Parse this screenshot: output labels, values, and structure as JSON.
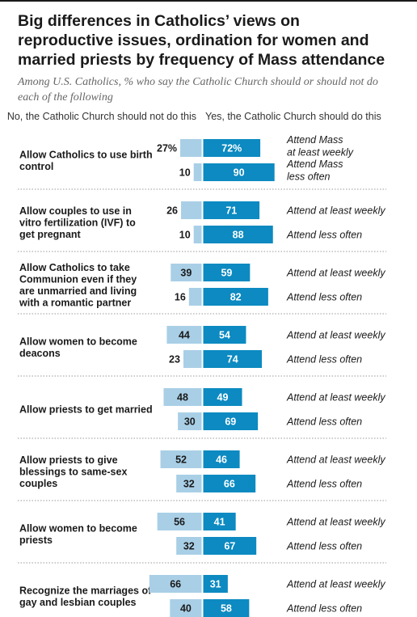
{
  "title": "Big differences in Catholics’ views on reproductive issues, ordination for women and married priests by frequency of Mass attendance",
  "subtitle": "Among U.S. Catholics, % who say the Catholic Church should or should not do each of the following",
  "colors": {
    "no": "#a9cfe6",
    "yes": "#0c8ac1",
    "no_text": "#1a1a1a",
    "yes_text": "#ffffff",
    "divider": "#999999"
  },
  "chart_data": {
    "type": "bar",
    "orientation": "horizontal-diverging",
    "title": "Big differences in Catholics’ views on reproductive issues, ordination for women and married priests by frequency of Mass attendance",
    "subtitle": "Among U.S. Catholics, % who say the Catholic Church should or should not do each of the following",
    "unit": "%",
    "series": [
      {
        "name": "No, the Catholic Church should not do this",
        "side": "left",
        "color": "#a9cfe6"
      },
      {
        "name": "Yes, the Catholic Church should do this",
        "side": "right",
        "color": "#0c8ac1"
      }
    ],
    "groups": [
      {
        "category": "Allow Catholics to use birth control",
        "rows": [
          {
            "attendance": "Attend Mass at least weekly",
            "no": 27,
            "yes": 72,
            "no_label": "27%",
            "yes_label": "72%"
          },
          {
            "attendance": "Attend Mass less often",
            "no": 10,
            "yes": 90,
            "no_label": "10",
            "yes_label": "90"
          }
        ]
      },
      {
        "category": "Allow couples to use in vitro fertilization (IVF) to get pregnant",
        "rows": [
          {
            "attendance": "Attend at least weekly",
            "no": 26,
            "yes": 71,
            "no_label": "26",
            "yes_label": "71"
          },
          {
            "attendance": "Attend less often",
            "no": 10,
            "yes": 88,
            "no_label": "10",
            "yes_label": "88"
          }
        ]
      },
      {
        "category": "Allow Catholics to take Communion even if they are unmarried and living with a romantic partner",
        "rows": [
          {
            "attendance": "Attend at least weekly",
            "no": 39,
            "yes": 59,
            "no_label": "39",
            "yes_label": "59"
          },
          {
            "attendance": "Attend less often",
            "no": 16,
            "yes": 82,
            "no_label": "16",
            "yes_label": "82"
          }
        ]
      },
      {
        "category": "Allow women to become deacons",
        "rows": [
          {
            "attendance": "Attend at least weekly",
            "no": 44,
            "yes": 54,
            "no_label": "44",
            "yes_label": "54"
          },
          {
            "attendance": "Attend less often",
            "no": 23,
            "yes": 74,
            "no_label": "23",
            "yes_label": "74"
          }
        ]
      },
      {
        "category": "Allow priests to get married",
        "rows": [
          {
            "attendance": "Attend at least weekly",
            "no": 48,
            "yes": 49,
            "no_label": "48",
            "yes_label": "49"
          },
          {
            "attendance": "Attend less often",
            "no": 30,
            "yes": 69,
            "no_label": "30",
            "yes_label": "69"
          }
        ]
      },
      {
        "category": "Allow priests to give blessings to same-sex couples",
        "rows": [
          {
            "attendance": "Attend at least weekly",
            "no": 52,
            "yes": 46,
            "no_label": "52",
            "yes_label": "46"
          },
          {
            "attendance": "Attend less often",
            "no": 32,
            "yes": 66,
            "no_label": "32",
            "yes_label": "66"
          }
        ]
      },
      {
        "category": "Allow women to become priests",
        "rows": [
          {
            "attendance": "Attend at least weekly",
            "no": 56,
            "yes": 41,
            "no_label": "56",
            "yes_label": "41"
          },
          {
            "attendance": "Attend less often",
            "no": 32,
            "yes": 67,
            "no_label": "32",
            "yes_label": "67"
          }
        ]
      },
      {
        "category": "Recognize the marriages of gay and lesbian couples",
        "rows": [
          {
            "attendance": "Attend at least weekly",
            "no": 66,
            "yes": 31,
            "no_label": "66",
            "yes_label": "31"
          },
          {
            "attendance": "Attend less often",
            "no": 40,
            "yes": 58,
            "no_label": "40",
            "yes_label": "58"
          }
        ]
      }
    ]
  }
}
